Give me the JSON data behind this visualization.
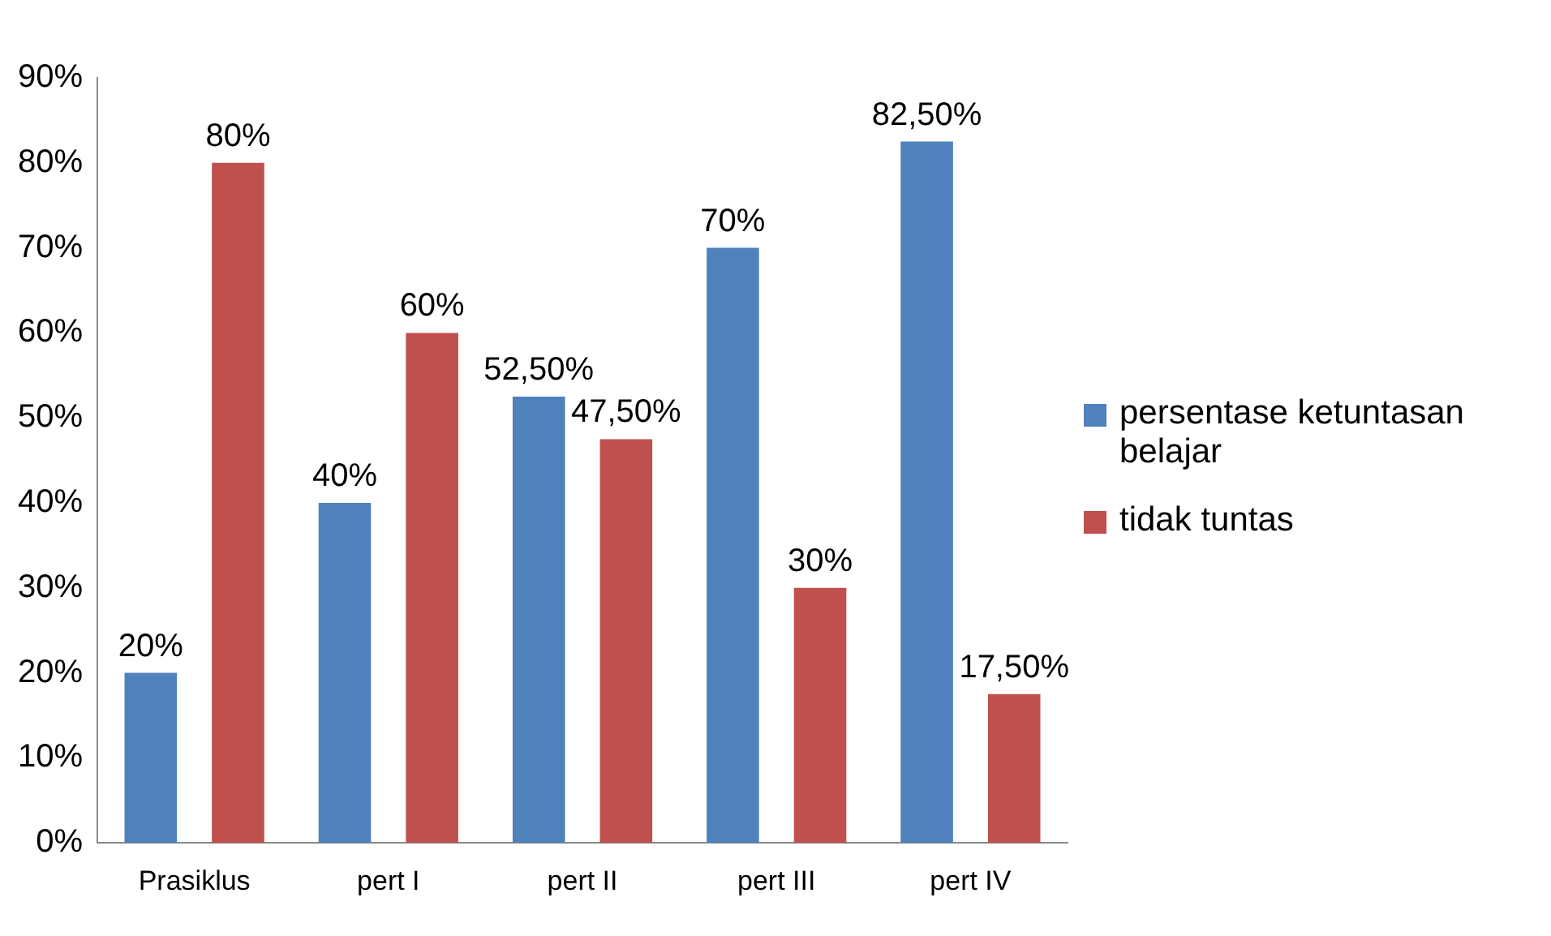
{
  "chart_data": {
    "type": "bar",
    "categories": [
      "Prasiklus",
      "pert I",
      "pert II",
      "pert III",
      "pert IV"
    ],
    "series": [
      {
        "name": "persentase ketuntasan belajar",
        "color": "#4f81bd",
        "values": [
          20,
          40,
          52.5,
          70,
          82.5
        ],
        "value_labels": [
          "20%",
          "40%",
          "52,50%",
          "70%",
          "82,50%"
        ]
      },
      {
        "name": "tidak tuntas",
        "color": "#c0504d",
        "values": [
          80,
          60,
          47.5,
          30,
          17.5
        ],
        "value_labels": [
          "80%",
          "60%",
          "47,50%",
          "30%",
          "17,50%"
        ]
      }
    ],
    "ylim": [
      0,
      90
    ],
    "yticks": [
      {
        "value": 0,
        "label": "0%"
      },
      {
        "value": 10,
        "label": "10%"
      },
      {
        "value": 20,
        "label": "20%"
      },
      {
        "value": 30,
        "label": "30%"
      },
      {
        "value": 40,
        "label": "40%"
      },
      {
        "value": 50,
        "label": "50%"
      },
      {
        "value": 60,
        "label": "60%"
      },
      {
        "value": 70,
        "label": "70%"
      },
      {
        "value": 80,
        "label": "80%"
      },
      {
        "value": 90,
        "label": "90%"
      }
    ],
    "grid": false,
    "legend": "right"
  }
}
